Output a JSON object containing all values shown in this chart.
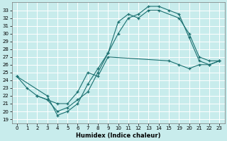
{
  "xlabel": "Humidex (Indice chaleur)",
  "ylabel": "",
  "bg_color": "#c8ecec",
  "line_color": "#1a7070",
  "grid_color": "#ffffff",
  "xlim": [
    -0.5,
    23.5
  ],
  "ylim": [
    18.5,
    34.0
  ],
  "xtick_vals": [
    0,
    1,
    2,
    3,
    4,
    5,
    6,
    7,
    8,
    9,
    10,
    11,
    12,
    13,
    14,
    15,
    19,
    20,
    21,
    22,
    23
  ],
  "xtick_labels": [
    "0",
    "1",
    "2",
    "3",
    "4",
    "5",
    "6",
    "7",
    "8",
    "9",
    "10",
    "11",
    "12",
    "13",
    "14",
    "15",
    "19",
    "20",
    "21",
    "22",
    "23"
  ],
  "ytick_vals": [
    19,
    20,
    21,
    22,
    23,
    24,
    25,
    26,
    27,
    28,
    29,
    30,
    31,
    32,
    33
  ],
  "series": [
    [
      [
        0,
        24.5
      ],
      [
        1,
        23.0
      ],
      [
        2,
        22.0
      ],
      [
        3,
        21.5
      ],
      [
        4,
        20.0
      ],
      [
        5,
        20.5
      ],
      [
        6,
        21.5
      ],
      [
        7,
        22.5
      ],
      [
        8,
        25.0
      ],
      [
        9,
        27.5
      ],
      [
        10,
        31.5
      ],
      [
        11,
        32.5
      ],
      [
        12,
        32.0
      ],
      [
        13,
        33.0
      ],
      [
        14,
        33.0
      ],
      [
        19,
        32.0
      ],
      [
        20,
        30.0
      ],
      [
        21,
        27.0
      ],
      [
        22,
        26.5
      ],
      [
        23,
        26.5
      ]
    ],
    [
      [
        2,
        22.0
      ],
      [
        3,
        21.5
      ],
      [
        4,
        21.0
      ],
      [
        5,
        21.0
      ],
      [
        6,
        22.5
      ],
      [
        7,
        25.0
      ],
      [
        8,
        24.5
      ],
      [
        9,
        27.0
      ],
      [
        15,
        26.5
      ],
      [
        19,
        26.0
      ],
      [
        20,
        25.5
      ],
      [
        21,
        26.0
      ],
      [
        22,
        26.0
      ],
      [
        23,
        26.5
      ]
    ],
    [
      [
        0,
        24.5
      ],
      [
        3,
        22.0
      ],
      [
        4,
        19.5
      ],
      [
        5,
        20.0
      ],
      [
        6,
        21.0
      ],
      [
        7,
        23.5
      ],
      [
        8,
        25.5
      ],
      [
        9,
        27.5
      ],
      [
        10,
        30.0
      ],
      [
        11,
        32.0
      ],
      [
        12,
        32.5
      ],
      [
        13,
        33.5
      ],
      [
        14,
        33.5
      ],
      [
        15,
        33.0
      ],
      [
        19,
        32.5
      ],
      [
        20,
        29.5
      ],
      [
        21,
        26.5
      ],
      [
        22,
        26.0
      ],
      [
        23,
        26.5
      ]
    ]
  ],
  "x_index_map": {
    "0": 0,
    "1": 1,
    "2": 2,
    "3": 3,
    "4": 4,
    "5": 5,
    "6": 6,
    "7": 7,
    "8": 8,
    "9": 9,
    "10": 10,
    "11": 11,
    "12": 12,
    "13": 13,
    "14": 14,
    "15": 15,
    "19": 16,
    "20": 17,
    "21": 18,
    "22": 19,
    "23": 20
  }
}
